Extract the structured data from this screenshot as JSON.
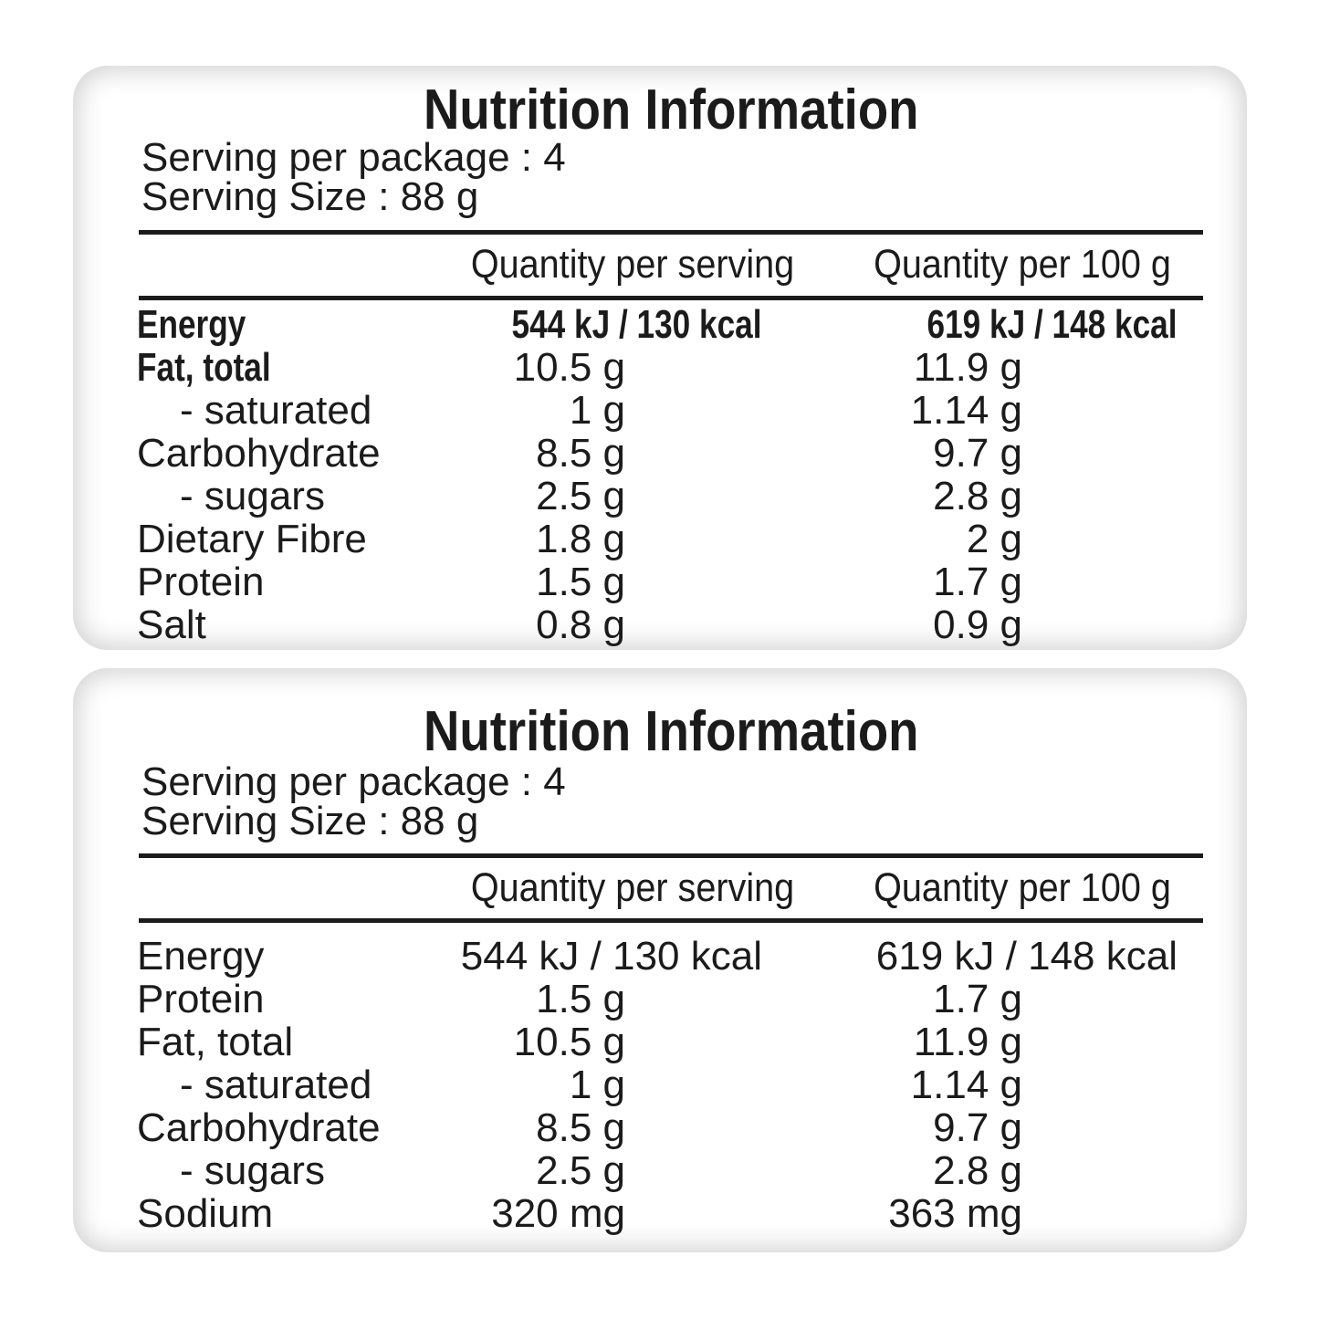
{
  "panels": [
    {
      "title": "Nutrition Information",
      "serving_per_package": "Serving per package : 4",
      "serving_size": "Serving Size : 88 g",
      "columns": {
        "per_serving": "Quantity per serving",
        "per_100g": "Quantity per 100 g"
      },
      "rows": [
        {
          "label": "Energy",
          "per_serving": "544 kJ / 130 kcal",
          "per_100g": "619 kJ / 148 kcal"
        },
        {
          "label": "Fat, total",
          "per_serving": "10.5 g",
          "per_100g": "11.9 g"
        },
        {
          "label": "- saturated",
          "per_serving": "1 g",
          "per_100g": "1.14 g"
        },
        {
          "label": "Carbohydrate",
          "per_serving": "8.5 g",
          "per_100g": "9.7 g"
        },
        {
          "label": "- sugars",
          "per_serving": "2.5 g",
          "per_100g": "2.8 g"
        },
        {
          "label": "Dietary Fibre",
          "per_serving": "1.8 g",
          "per_100g": "2 g"
        },
        {
          "label": "Protein",
          "per_serving": "1.5 g",
          "per_100g": "1.7 g"
        },
        {
          "label": "Salt",
          "per_serving": "0.8 g",
          "per_100g": "0.9 g"
        }
      ]
    },
    {
      "title": "Nutrition Information",
      "serving_per_package": "Serving per package : 4",
      "serving_size": "Serving Size : 88 g",
      "columns": {
        "per_serving": "Quantity per serving",
        "per_100g": "Quantity per 100 g"
      },
      "rows": [
        {
          "label": "Energy",
          "per_serving": "544 kJ / 130 kcal",
          "per_100g": "619 kJ / 148 kcal"
        },
        {
          "label": "Protein",
          "per_serving": "1.5 g",
          "per_100g": "1.7 g"
        },
        {
          "label": "Fat, total",
          "per_serving": "10.5 g",
          "per_100g": "11.9 g"
        },
        {
          "label": "- saturated",
          "per_serving": "1 g",
          "per_100g": "1.14 g"
        },
        {
          "label": "Carbohydrate",
          "per_serving": "8.5 g",
          "per_100g": "9.7 g"
        },
        {
          "label": "- sugars",
          "per_serving": "2.5 g",
          "per_100g": "2.8 g"
        },
        {
          "label": "Sodium",
          "per_serving": "320 mg",
          "per_100g": "363 mg"
        }
      ]
    }
  ],
  "colors": {
    "text": "#1b1b1b",
    "rule": "#1b1b1b",
    "panel_edge": "#cccccc",
    "background": "#ffffff"
  }
}
